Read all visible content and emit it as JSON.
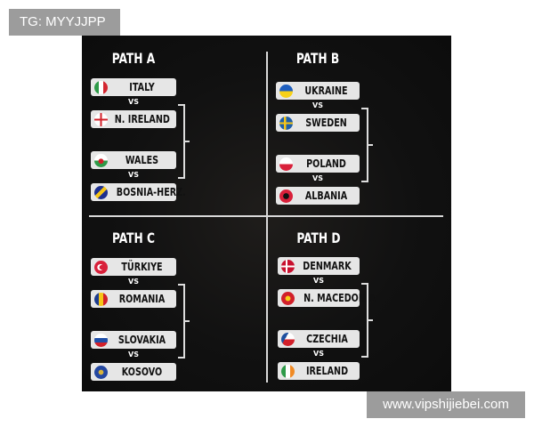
{
  "overlay_label": "TG: MYYJJPP",
  "watermark": "www.vipshijiebei.com",
  "vs_label": "VS",
  "paths": [
    {
      "title": "PATH A",
      "teams": [
        {
          "name": "ITALY",
          "flag": "italy"
        },
        {
          "name": "N. IRELAND",
          "flag": "northern-ireland"
        },
        {
          "name": "WALES",
          "flag": "wales"
        },
        {
          "name": "BOSNIA-HERZ.",
          "flag": "bosnia"
        }
      ]
    },
    {
      "title": "PATH B",
      "teams": [
        {
          "name": "UKRAINE",
          "flag": "ukraine"
        },
        {
          "name": "SWEDEN",
          "flag": "sweden"
        },
        {
          "name": "POLAND",
          "flag": "poland"
        },
        {
          "name": "ALBANIA",
          "flag": "albania"
        }
      ]
    },
    {
      "title": "PATH C",
      "teams": [
        {
          "name": "TÜRKIYE",
          "flag": "turkiye"
        },
        {
          "name": "ROMANIA",
          "flag": "romania"
        },
        {
          "name": "SLOVAKIA",
          "flag": "slovakia"
        },
        {
          "name": "KOSOVO",
          "flag": "kosovo"
        }
      ]
    },
    {
      "title": "PATH D",
      "teams": [
        {
          "name": "DENMARK",
          "flag": "denmark"
        },
        {
          "name": "N. MACEDONIA",
          "flag": "north-macedonia"
        },
        {
          "name": "CZECHIA",
          "flag": "czechia"
        },
        {
          "name": "IRELAND",
          "flag": "ireland"
        }
      ]
    }
  ]
}
